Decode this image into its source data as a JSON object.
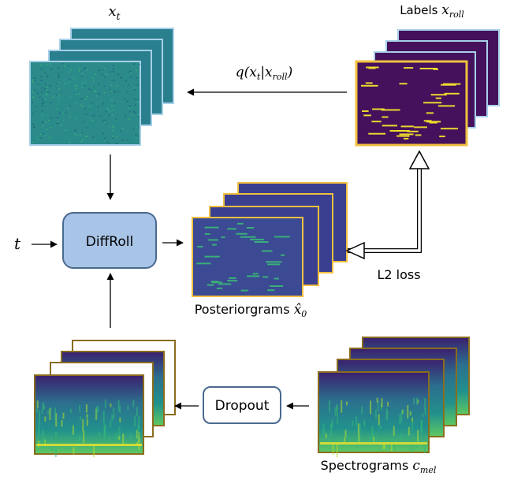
{
  "labels": {
    "xt_var": "x",
    "xt_sub": "t",
    "labels_word": "Labels ",
    "labels_var": "x",
    "labels_sub": "roll",
    "q_prefix": "q(",
    "q_var1": "x",
    "q_sub1": "t",
    "q_bar": "|",
    "q_var2": "x",
    "q_sub2": "roll",
    "q_suffix": ")",
    "t_input": "t",
    "diffroll": "DiffRoll",
    "l2_loss": "L2 loss",
    "posteriorgrams_word": "Posteriorgrams ",
    "posteriorgrams_var": "x̂",
    "posteriorgrams_sub": "0",
    "dropout": "Dropout",
    "spectrograms_word": "Spectrograms ",
    "spectrograms_var": "c",
    "spectrograms_sub": "mel"
  },
  "colors": {
    "viridis_dark": "#45115c",
    "viridis_teal": "#2a7f8e",
    "viridis_green": "#3bb979",
    "viridis_yellow": "#f3e32b",
    "frame_blue": "#a7d0e8",
    "frame_gold": "#f0c040",
    "frame_brown": "#8a6d1d",
    "box_fill": "#a8c4e6",
    "box_stroke": "#4a6a8f"
  }
}
